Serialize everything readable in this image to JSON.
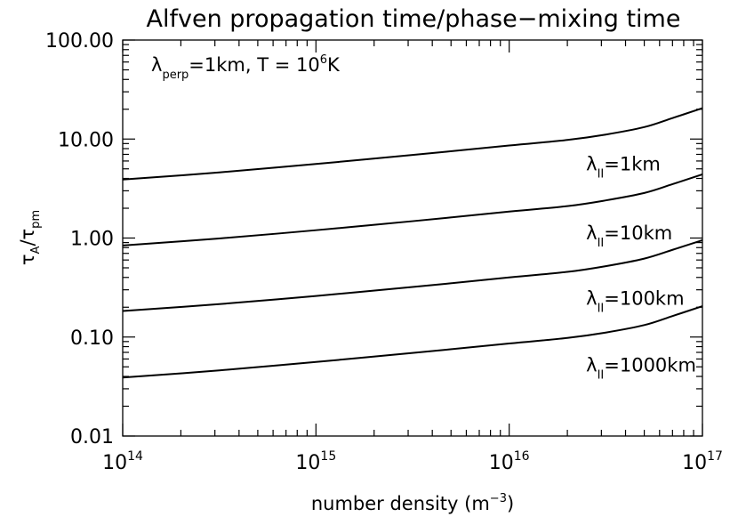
{
  "chart_data": {
    "type": "line",
    "title": "Alfven propagation time/phase−mixing time",
    "xlabel": {
      "main": "number density (m",
      "sup": "−3",
      "end": ")"
    },
    "ylabel": {
      "tauA": "τ",
      "subA": "A",
      "slash": "/",
      "tauPm": "τ",
      "subPm": "pm"
    },
    "x_scale": "log",
    "y_scale": "log",
    "xlim": [
      100000000000000.0,
      1e+17
    ],
    "ylim": [
      0.01,
      100
    ],
    "grid": false,
    "x_ticks": [
      {
        "value": 100000000000000.0,
        "base": "10",
        "exp": "14"
      },
      {
        "value": 1000000000000000.0,
        "base": "10",
        "exp": "15"
      },
      {
        "value": 1e+16,
        "base": "10",
        "exp": "16"
      },
      {
        "value": 1e+17,
        "base": "10",
        "exp": "17"
      }
    ],
    "y_ticks": [
      {
        "value": 0.01,
        "label": "0.01"
      },
      {
        "value": 0.1,
        "label": "0.10"
      },
      {
        "value": 1,
        "label": "1.00"
      },
      {
        "value": 10,
        "label": "10.00"
      },
      {
        "value": 100,
        "label": "100.00"
      }
    ],
    "annotation": {
      "lambda": "λ",
      "sub": "perp",
      "mid": "=1km, T = 10",
      "sup": "6",
      "end": "K"
    },
    "series": [
      {
        "name": "=1km",
        "label_x": 2.5e+16,
        "label_y": 5.6,
        "points": [
          [
            100000000000000.0,
            3.9
          ],
          [
            316000000000000.0,
            4.6
          ],
          [
            1000000000000000.0,
            5.6
          ],
          [
            3160000000000000.0,
            6.9
          ],
          [
            1e+16,
            8.6
          ],
          [
            2e+16,
            9.8
          ],
          [
            3.16e+16,
            11.1
          ],
          [
            5e+16,
            13.2
          ],
          [
            7e+16,
            16.3
          ],
          [
            1e+17,
            20.5
          ]
        ]
      },
      {
        "name": "=10km",
        "label_x": 2.5e+16,
        "label_y": 1.12,
        "points": [
          [
            100000000000000.0,
            0.84
          ],
          [
            316000000000000.0,
            0.99
          ],
          [
            1000000000000000.0,
            1.2
          ],
          [
            3160000000000000.0,
            1.48
          ],
          [
            1e+16,
            1.85
          ],
          [
            2e+16,
            2.1
          ],
          [
            3.16e+16,
            2.4
          ],
          [
            5e+16,
            2.85
          ],
          [
            7e+16,
            3.5
          ],
          [
            1e+17,
            4.4
          ]
        ]
      },
      {
        "name": "=100km",
        "label_x": 2.5e+16,
        "label_y": 0.245,
        "points": [
          [
            100000000000000.0,
            0.183
          ],
          [
            316000000000000.0,
            0.215
          ],
          [
            1000000000000000.0,
            0.26
          ],
          [
            3160000000000000.0,
            0.32
          ],
          [
            1e+16,
            0.4
          ],
          [
            2e+16,
            0.455
          ],
          [
            3.16e+16,
            0.52
          ],
          [
            5e+16,
            0.62
          ],
          [
            7e+16,
            0.76
          ],
          [
            1e+17,
            0.95
          ]
        ]
      },
      {
        "name": "=1000km",
        "label_x": 2.5e+16,
        "label_y": 0.052,
        "points": [
          [
            100000000000000.0,
            0.039
          ],
          [
            316000000000000.0,
            0.046
          ],
          [
            1000000000000000.0,
            0.056
          ],
          [
            3160000000000000.0,
            0.069
          ],
          [
            1e+16,
            0.086
          ],
          [
            2e+16,
            0.098
          ],
          [
            3.16e+16,
            0.111
          ],
          [
            5e+16,
            0.132
          ],
          [
            7e+16,
            0.163
          ],
          [
            1e+17,
            0.205
          ]
        ]
      }
    ],
    "series_label_prefix": "λ",
    "series_label_sub": "II"
  }
}
